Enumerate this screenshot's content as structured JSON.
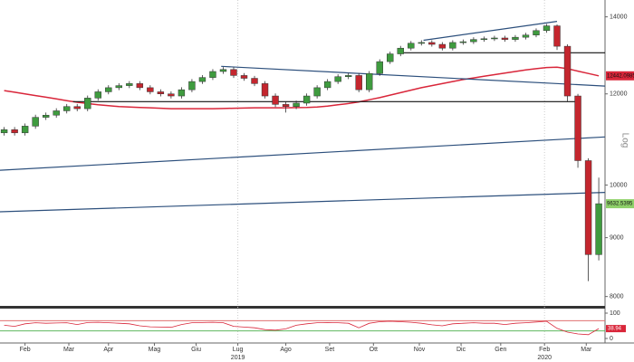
{
  "chart_data": {
    "type": "candlestick",
    "log_scale": true,
    "y_axis_label": "Log",
    "x": [
      0,
      5,
      10,
      15,
      20,
      25,
      30,
      35,
      40,
      45,
      50,
      55,
      60,
      65,
      70,
      75,
      80,
      85,
      90,
      95,
      100,
      105,
      110,
      115,
      120,
      125,
      130,
      135,
      140,
      145,
      150,
      155,
      160,
      165,
      170,
      175,
      180,
      185,
      190,
      195,
      200,
      205,
      210,
      215,
      220,
      225,
      230,
      235,
      240,
      245,
      250,
      255,
      260,
      265,
      270,
      275,
      280,
      285
    ],
    "open": [
      11100,
      11170,
      11100,
      11250,
      11450,
      11500,
      11600,
      11700,
      11650,
      11900,
      12050,
      12150,
      12200,
      12250,
      12150,
      12050,
      12000,
      11950,
      12100,
      12300,
      12400,
      12550,
      12600,
      12450,
      12380,
      12250,
      11950,
      11750,
      11700,
      11780,
      11950,
      12150,
      12300,
      12420,
      12450,
      12100,
      12500,
      12800,
      13000,
      13150,
      13280,
      13300,
      13250,
      13150,
      13300,
      13320,
      13380,
      13400,
      13420,
      13380,
      13440,
      13500,
      13620,
      13750,
      13200,
      11950,
      10500,
      8700
    ],
    "high": [
      11230,
      11230,
      11310,
      11510,
      11560,
      11660,
      11760,
      11760,
      11960,
      12110,
      12210,
      12260,
      12310,
      12310,
      12210,
      12110,
      12060,
      12160,
      12360,
      12460,
      12610,
      12660,
      12660,
      12510,
      12440,
      12310,
      12010,
      11810,
      11840,
      12010,
      12210,
      12360,
      12480,
      12510,
      12510,
      12560,
      12860,
      13060,
      13210,
      13340,
      13360,
      13360,
      13310,
      13360,
      13380,
      13440,
      13460,
      13480,
      13480,
      13500,
      13560,
      13680,
      13800,
      13790,
      13250,
      12000,
      10550,
      10150
    ],
    "low": [
      11040,
      11040,
      11040,
      11190,
      11390,
      11440,
      11540,
      11590,
      11590,
      11840,
      11990,
      12090,
      12140,
      12090,
      11990,
      11940,
      11890,
      11890,
      12040,
      12240,
      12340,
      12490,
      12390,
      12320,
      12190,
      11890,
      11690,
      11560,
      11640,
      11720,
      11890,
      12090,
      12240,
      12360,
      12040,
      12040,
      12440,
      12740,
      12940,
      13090,
      13220,
      13190,
      13090,
      13090,
      13240,
      13260,
      13320,
      13340,
      13320,
      13320,
      13380,
      13440,
      13560,
      13100,
      11800,
      10350,
      8250,
      8600
    ],
    "close": [
      11170,
      11100,
      11250,
      11450,
      11500,
      11600,
      11700,
      11650,
      11900,
      12050,
      12150,
      12200,
      12250,
      12150,
      12050,
      12000,
      11950,
      12100,
      12300,
      12400,
      12550,
      12600,
      12450,
      12380,
      12250,
      11950,
      11750,
      11700,
      11780,
      11950,
      12150,
      12300,
      12420,
      12450,
      12100,
      12500,
      12800,
      13000,
      13150,
      13280,
      13300,
      13250,
      13150,
      13300,
      13320,
      13380,
      13400,
      13420,
      13380,
      13440,
      13500,
      13620,
      13750,
      13200,
      11950,
      10500,
      8700,
      9632.5395
    ],
    "up_color": "#3f9b3f",
    "down_color": "#c4262e",
    "ylim": [
      7880,
      14480
    ],
    "yticks": [
      8000,
      9000,
      10000,
      12000,
      14000
    ],
    "xlim": [
      -2,
      288
    ],
    "xticks": [
      {
        "value": 10,
        "label": "Feb"
      },
      {
        "value": 31,
        "label": "Mar"
      },
      {
        "value": 50,
        "label": "Apr"
      },
      {
        "value": 72,
        "label": "Mag"
      },
      {
        "value": 92,
        "label": "Giu"
      },
      {
        "value": 112,
        "label": "Lug"
      },
      {
        "value": 135,
        "label": "Ago"
      },
      {
        "value": 156,
        "label": "Set"
      },
      {
        "value": 177,
        "label": "Ott"
      },
      {
        "value": 199,
        "label": "Nov"
      },
      {
        "value": 219,
        "label": "Dic"
      },
      {
        "value": 238,
        "label": "Gen"
      },
      {
        "value": 259,
        "label": "Feb"
      },
      {
        "value": 279,
        "label": "Mar"
      }
    ],
    "year_labels": [
      {
        "value": 112,
        "label": "2019"
      },
      {
        "value": 259,
        "label": "2020"
      }
    ],
    "last_color": "#8fd16a",
    "ma": {
      "color": "#d9263a",
      "values": [
        12080,
        12040,
        12000,
        11960,
        11920,
        11880,
        11840,
        11800,
        11770,
        11740,
        11720,
        11700,
        11690,
        11680,
        11670,
        11660,
        11650,
        11650,
        11650,
        11650,
        11650,
        11655,
        11660,
        11665,
        11670,
        11670,
        11670,
        11670,
        11675,
        11680,
        11690,
        11710,
        11740,
        11770,
        11810,
        11860,
        11910,
        11970,
        12030,
        12090,
        12150,
        12200,
        12250,
        12300,
        12350,
        12390,
        12430,
        12470,
        12510,
        12550,
        12590,
        12620,
        12650,
        12660,
        12620,
        12560,
        12500,
        12442.0985
      ]
    },
    "overlays": [
      {
        "x": [
          201,
          265
        ],
        "values": [
          13360,
          13875
        ],
        "color": "#2c4f7c"
      },
      {
        "x": [
          104,
          288
        ],
        "values": [
          12680,
          12190
        ],
        "color": "#2c4f7c"
      },
      {
        "x": [
          189,
          288
        ],
        "values": [
          13030,
          13030
        ],
        "color": "#111111"
      },
      {
        "x": [
          33,
          276
        ],
        "values": [
          11815,
          11815
        ],
        "color": "#111111"
      },
      {
        "x": [
          -2,
          288
        ],
        "values": [
          10300,
          11010
        ],
        "color": "#2c4f7c"
      },
      {
        "x": [
          -2,
          288
        ],
        "values": [
          9478,
          9853
        ],
        "color": "#2c4f7c"
      }
    ],
    "rsi": {
      "color": "#d9263a",
      "ylim": [
        0,
        100
      ],
      "yticks": [
        100,
        0
      ],
      "levels": [
        {
          "value": 70,
          "color": "#e07070"
        },
        {
          "value": 30,
          "color": "#5fb85f"
        }
      ],
      "values": [
        52,
        48,
        58,
        62,
        60,
        61,
        62,
        55,
        63,
        64,
        62,
        60,
        58,
        50,
        46,
        45,
        44,
        55,
        62,
        63,
        64,
        62,
        48,
        45,
        42,
        35,
        33,
        38,
        52,
        58,
        62,
        63,
        62,
        60,
        42,
        60,
        66,
        68,
        66,
        64,
        60,
        54,
        50,
        58,
        60,
        62,
        60,
        60,
        55,
        60,
        62,
        65,
        68,
        40,
        25,
        18,
        15,
        38.94
      ]
    }
  }
}
